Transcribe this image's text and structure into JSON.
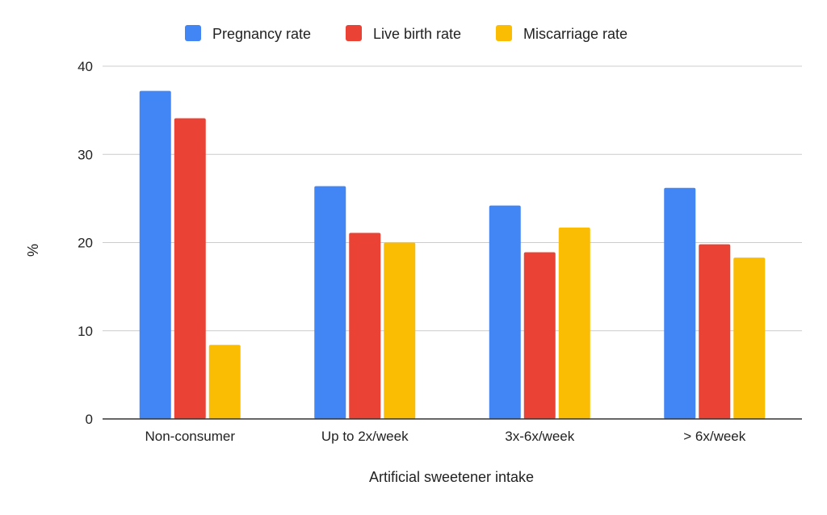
{
  "chart_data": {
    "type": "bar",
    "categories": [
      "Non-consumer",
      "Up to 2x/week",
      "3x-6x/week",
      "> 6x/week"
    ],
    "series": [
      {
        "name": "Pregnancy rate",
        "values": [
          37.2,
          26.4,
          24.2,
          26.2
        ],
        "color": "#4285F4"
      },
      {
        "name": "Live birth rate",
        "values": [
          34.1,
          21.1,
          18.9,
          19.8
        ],
        "color": "#EA4335"
      },
      {
        "name": "Miscarriage rate",
        "values": [
          8.4,
          20.0,
          21.7,
          18.3
        ],
        "color": "#FBBC04"
      }
    ],
    "xlabel": "Artificial sweetener intake",
    "ylabel": "%",
    "ylim": [
      0,
      40
    ],
    "yticks": [
      0,
      10,
      20,
      30,
      40
    ],
    "grid": true,
    "legend_position": "top"
  }
}
